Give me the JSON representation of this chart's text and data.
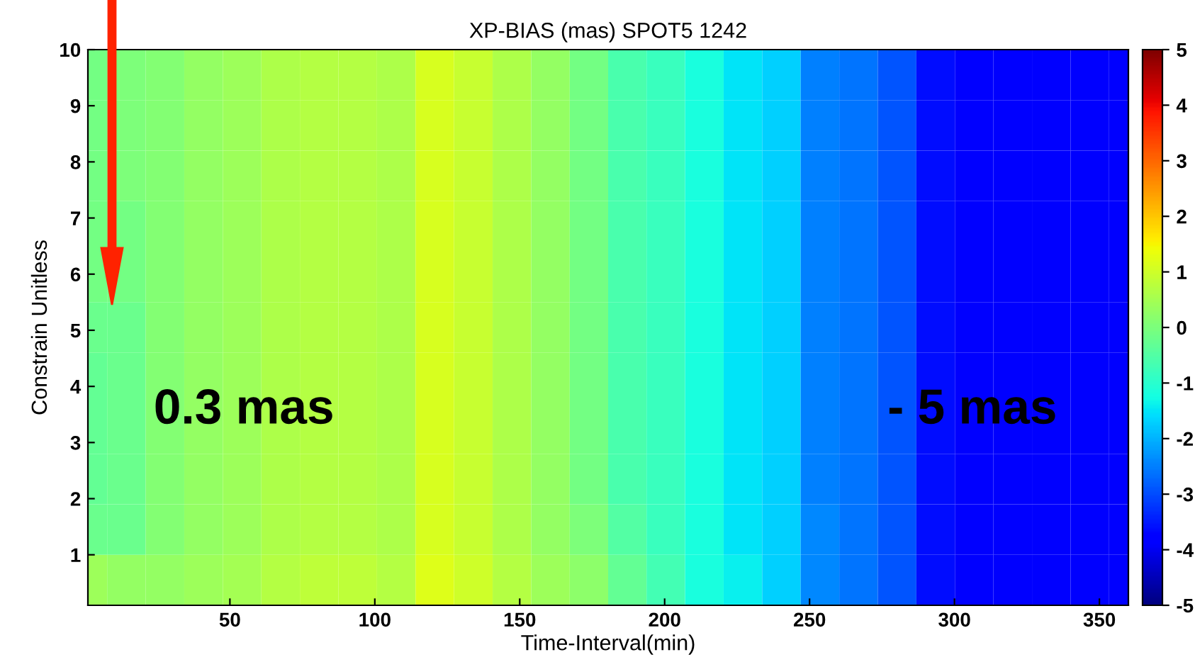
{
  "chart_data": {
    "type": "heatmap",
    "title": "XP-BIAS (mas) SPOT5 1242",
    "xlabel": "Time-Interval(min)",
    "ylabel": "Constrain Unitless",
    "x": [
      1,
      14.3,
      27.6,
      40.9,
      54.2,
      67.5,
      80.8,
      94.1,
      107.4,
      120.7,
      134,
      147.3,
      160.6,
      173.9,
      187.1,
      200.4,
      213.7,
      227,
      240.3,
      253.6,
      266.9,
      280.2,
      293.5,
      306.8,
      320.1,
      333.4,
      346.7,
      360
    ],
    "cells": [
      [
        -0.1,
        0,
        0.1,
        0.3,
        0.4,
        0.6,
        0.7,
        0.7,
        0.6,
        1.1,
        0.9,
        0.6,
        0.3,
        -0.1,
        -0.6,
        -0.8,
        -1.2,
        -1.5,
        -1.7,
        -2.5,
        -2.6,
        -2.9,
        -3.6,
        -3.8,
        -3.8,
        -3.9,
        -3.9,
        -3.9
      ],
      [
        -0.1,
        0,
        0.1,
        0.3,
        0.4,
        0.6,
        0.7,
        0.7,
        0.6,
        1.1,
        0.9,
        0.6,
        0.3,
        -0.1,
        -0.6,
        -0.8,
        -1.2,
        -1.5,
        -1.7,
        -2.5,
        -2.6,
        -2.9,
        -3.6,
        -3.8,
        -3.8,
        -3.9,
        -3.9,
        -3.9
      ],
      [
        -0.1,
        0,
        0.1,
        0.3,
        0.4,
        0.6,
        0.7,
        0.7,
        0.6,
        1.1,
        0.9,
        0.6,
        0.3,
        -0.1,
        -0.6,
        -0.8,
        -1.2,
        -1.5,
        -1.7,
        -2.5,
        -2.6,
        -2.9,
        -3.6,
        -3.8,
        -3.8,
        -3.9,
        -3.9,
        -3.9
      ],
      [
        -0.1,
        -0.1,
        0.1,
        0.3,
        0.4,
        0.6,
        0.7,
        0.7,
        0.6,
        1.1,
        0.9,
        0.6,
        0.3,
        -0.1,
        -0.6,
        -0.8,
        -1.2,
        -1.5,
        -1.7,
        -2.5,
        -2.6,
        -2.9,
        -3.6,
        -3.8,
        -3.8,
        -3.9,
        -3.9,
        -3.9
      ],
      [
        -0.1,
        -0.1,
        0.1,
        0.3,
        0.4,
        0.6,
        0.7,
        0.7,
        0.6,
        1.1,
        0.9,
        0.6,
        0.3,
        -0.1,
        -0.6,
        -0.8,
        -1.2,
        -1.5,
        -1.7,
        -2.5,
        -2.6,
        -2.9,
        -3.6,
        -3.8,
        -3.8,
        -3.9,
        -3.9,
        -3.9
      ],
      [
        -0.2,
        -0.2,
        0.1,
        0.3,
        0.4,
        0.6,
        0.7,
        0.7,
        0.6,
        1.1,
        0.9,
        0.6,
        0.3,
        -0.1,
        -0.6,
        -0.8,
        -1.2,
        -1.5,
        -1.7,
        -2.5,
        -2.6,
        -2.9,
        -3.6,
        -3.8,
        -3.8,
        -3.9,
        -3.9,
        -3.9
      ],
      [
        -0.3,
        -0.2,
        0.1,
        0.3,
        0.4,
        0.6,
        0.7,
        0.7,
        0.6,
        1.1,
        0.9,
        0.6,
        0.3,
        -0.1,
        -0.6,
        -0.8,
        -1.2,
        -1.5,
        -1.7,
        -2.5,
        -2.6,
        -2.9,
        -3.6,
        -3.8,
        -3.8,
        -3.9,
        -3.9,
        -3.9
      ],
      [
        -0.3,
        -0.2,
        0.1,
        0.3,
        0.4,
        0.6,
        0.7,
        0.7,
        0.6,
        1.1,
        0.9,
        0.6,
        0.3,
        -0.1,
        -0.6,
        -0.8,
        -1.2,
        -1.5,
        -1.7,
        -2.5,
        -2.6,
        -2.9,
        -3.6,
        -3.8,
        -3.8,
        -3.9,
        -3.9,
        -3.9
      ],
      [
        -0.3,
        -0.2,
        0.1,
        0.3,
        0.4,
        0.6,
        0.7,
        0.7,
        0.6,
        1.1,
        0.9,
        0.6,
        0.3,
        -0.1,
        -0.6,
        -0.8,
        -1.2,
        -1.5,
        -1.7,
        -2.5,
        -2.6,
        -2.9,
        -3.6,
        -3.8,
        -3.8,
        -3.9,
        -3.9,
        -3.9
      ],
      [
        -0.2,
        -0.2,
        0.1,
        0.3,
        0.4,
        0.6,
        0.7,
        0.7,
        0.6,
        1.1,
        0.9,
        0.6,
        0.3,
        0,
        -0.5,
        -0.8,
        -1.2,
        -1.5,
        -1.7,
        -2.4,
        -2.6,
        -2.9,
        -3.6,
        -3.8,
        -3.8,
        -3.9,
        -3.9,
        -3.9
      ],
      [
        0.4,
        0.3,
        0.3,
        0.4,
        0.5,
        0.7,
        0.8,
        0.8,
        0.7,
        1.2,
        1,
        0.7,
        0.4,
        0.2,
        -0.3,
        -0.7,
        -1.2,
        -1.4,
        -1.7,
        -2.4,
        -2.6,
        -2.9,
        -3.6,
        -3.8,
        -3.8,
        -3.9,
        -3.9,
        -3.9
      ]
    ],
    "xlim": [
      1,
      360
    ],
    "xticks": [
      50,
      100,
      150,
      200,
      250,
      300,
      350
    ],
    "ylim": [
      0.1,
      10
    ],
    "yticks": [
      1,
      2,
      3,
      4,
      5,
      6,
      7,
      8,
      9,
      10
    ],
    "clim": [
      -5,
      5
    ],
    "cticks": [
      -5,
      -4,
      -3,
      -2,
      -1,
      0,
      1,
      2,
      3,
      4,
      5
    ],
    "annotations": [
      "0.3 mas",
      "- 5 mas"
    ]
  }
}
